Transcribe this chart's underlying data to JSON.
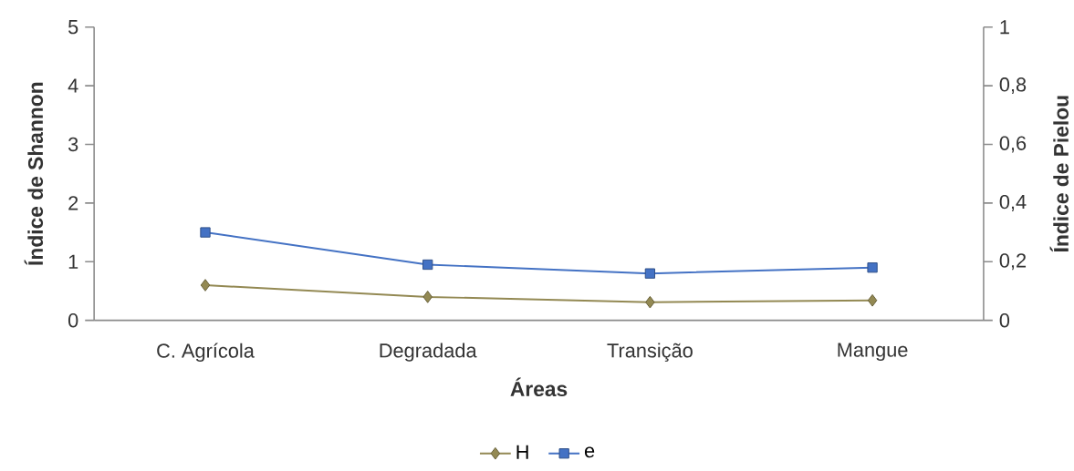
{
  "chart_data": {
    "type": "line",
    "xlabel": "Áreas",
    "ylabel": "Índice de Shannon",
    "y2label": "Índice de Pielou",
    "categories": [
      "C. Agrícola",
      "Degradada",
      "Transição",
      "Mangue"
    ],
    "series": [
      {
        "name": "H",
        "color": "#938953",
        "marker": "diamond",
        "values": [
          0.6,
          0.4,
          0.31,
          0.34
        ]
      },
      {
        "name": "e",
        "color": "#4472c4",
        "marker": "square",
        "axis": "y2",
        "values": [
          0.3,
          0.19,
          0.16,
          0.18
        ]
      }
    ],
    "ylim": [
      0,
      5
    ],
    "yticks": [
      0,
      1,
      2,
      3,
      4,
      5
    ],
    "y2lim": [
      0,
      1
    ],
    "y2ticks": [
      0,
      {
        "value": 0.2,
        "label": "0,2"
      },
      {
        "value": 0.4,
        "label": "0,4"
      },
      {
        "value": 0.6,
        "label": "0,6"
      },
      {
        "value": 0.8,
        "label": "0,8"
      },
      1
    ],
    "grid": false,
    "legend": "bottom",
    "line_style": "solid"
  }
}
